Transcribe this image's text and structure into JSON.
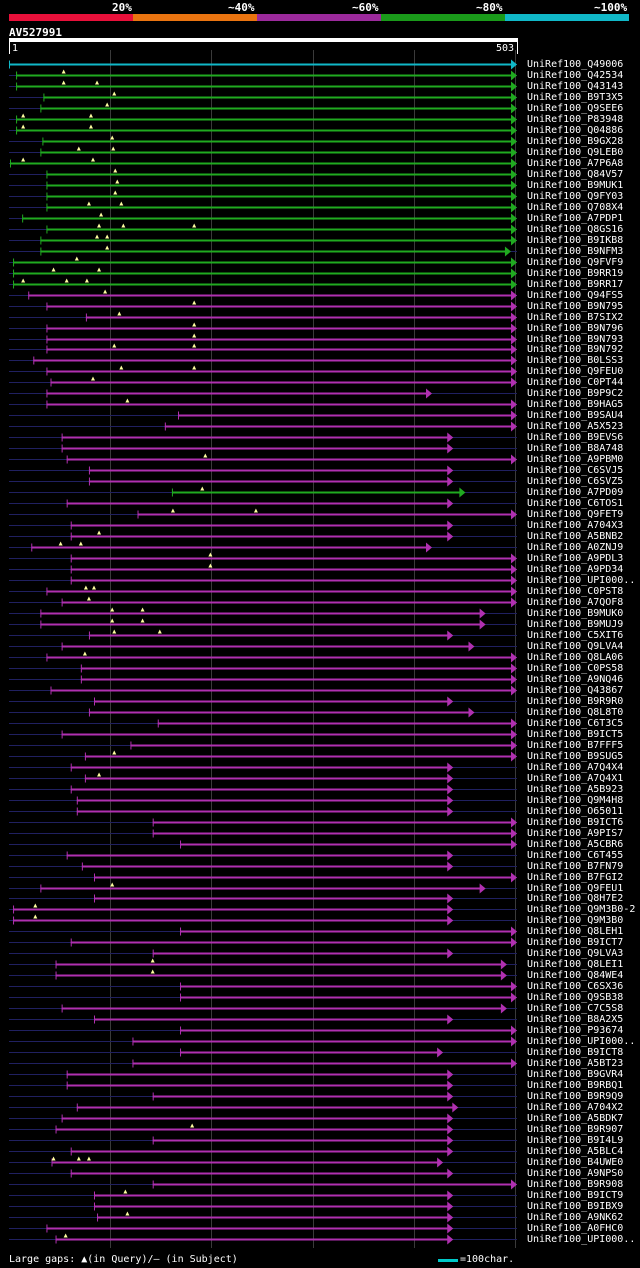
{
  "colors": {
    "bg": "#000000",
    "seg20": "#e8103a",
    "seg40": "#ea7410",
    "seg60": "#9c2a9c",
    "seg80": "#1a9a1a",
    "seg100": "#10b8c8",
    "green_line": "#20aa20",
    "magenta_line": "#b030b0",
    "cyan_line": "#10b8c8",
    "dark_line": "#202060",
    "grid": "#3a3a3a",
    "gap_marker": "#ffffa0"
  },
  "legend": {
    "labels": [
      "20%",
      "~40%",
      "~60%",
      "~80%",
      "~100%"
    ]
  },
  "query": {
    "title": "AV527991",
    "start": "1",
    "end": "503",
    "length": 503
  },
  "hits": [
    {
      "id": "UniRef100_Q49006",
      "color": "cyan",
      "start": 1,
      "end": 503,
      "arrow": true,
      "gaps": []
    },
    {
      "id": "UniRef100_Q42534",
      "color": "green",
      "start": 8,
      "end": 503,
      "arrow": true,
      "gaps": [
        55
      ]
    },
    {
      "id": "UniRef100_Q43143",
      "color": "green",
      "start": 8,
      "end": 503,
      "arrow": true,
      "gaps": [
        55,
        88
      ]
    },
    {
      "id": "UniRef100_B9T3X5",
      "color": "green",
      "start": 35,
      "end": 503,
      "arrow": true,
      "gaps": [
        105
      ]
    },
    {
      "id": "UniRef100_Q9SEE6",
      "color": "green",
      "start": 32,
      "end": 503,
      "arrow": true,
      "gaps": [
        98
      ]
    },
    {
      "id": "UniRef100_P83948",
      "color": "green",
      "start": 8,
      "end": 503,
      "arrow": true,
      "gaps": [
        15,
        82
      ]
    },
    {
      "id": "UniRef100_Q04886",
      "color": "green",
      "start": 8,
      "end": 503,
      "arrow": true,
      "gaps": [
        15,
        82
      ]
    },
    {
      "id": "UniRef100_B9GX28",
      "color": "green",
      "start": 34,
      "end": 503,
      "arrow": true,
      "gaps": [
        103
      ]
    },
    {
      "id": "UniRef100_Q9LEB0",
      "color": "green",
      "start": 32,
      "end": 503,
      "arrow": true,
      "gaps": [
        70,
        104
      ]
    },
    {
      "id": "UniRef100_A7P6A8",
      "color": "green",
      "start": 2,
      "end": 503,
      "arrow": true,
      "gaps": [
        15,
        84
      ]
    },
    {
      "id": "UniRef100_Q84V57",
      "color": "green",
      "start": 38,
      "end": 503,
      "arrow": true,
      "gaps": [
        106
      ]
    },
    {
      "id": "UniRef100_B9MUK1",
      "color": "green",
      "start": 38,
      "end": 503,
      "arrow": true,
      "gaps": [
        108
      ]
    },
    {
      "id": "UniRef100_Q9FY03",
      "color": "green",
      "start": 38,
      "end": 503,
      "arrow": true,
      "gaps": [
        106
      ]
    },
    {
      "id": "UniRef100_Q708X4",
      "color": "green",
      "start": 38,
      "end": 503,
      "arrow": true,
      "gaps": [
        80,
        112
      ]
    },
    {
      "id": "UniRef100_A7PDP1",
      "color": "green",
      "start": 14,
      "end": 503,
      "arrow": true,
      "gaps": [
        92
      ]
    },
    {
      "id": "UniRef100_Q8GS16",
      "color": "green",
      "start": 38,
      "end": 503,
      "arrow": true,
      "gaps": [
        90,
        114,
        184
      ]
    },
    {
      "id": "UniRef100_B9IKB8",
      "color": "green",
      "start": 32,
      "end": 503,
      "arrow": true,
      "gaps": [
        88,
        98
      ]
    },
    {
      "id": "UniRef100_B9NFM3",
      "color": "green",
      "start": 32,
      "end": 497,
      "arrow": true,
      "gaps": [
        98
      ]
    },
    {
      "id": "UniRef100_Q9FVF9",
      "color": "green",
      "start": 5,
      "end": 503,
      "arrow": true,
      "gaps": [
        68
      ]
    },
    {
      "id": "UniRef100_B9RR19",
      "color": "green",
      "start": 5,
      "end": 503,
      "arrow": true,
      "gaps": [
        45,
        90
      ]
    },
    {
      "id": "UniRef100_B9RR17",
      "color": "green",
      "start": 5,
      "end": 503,
      "arrow": true,
      "gaps": [
        15,
        58,
        78
      ]
    },
    {
      "id": "UniRef100_Q94FS5",
      "color": "magenta",
      "start": 20,
      "end": 503,
      "arrow": true,
      "gaps": [
        96
      ]
    },
    {
      "id": "UniRef100_B9N795",
      "color": "magenta",
      "start": 38,
      "end": 503,
      "arrow": true,
      "gaps": [
        184
      ]
    },
    {
      "id": "UniRef100_B7SIX2",
      "color": "magenta",
      "start": 77,
      "end": 503,
      "arrow": true,
      "gaps": [
        110
      ]
    },
    {
      "id": "UniRef100_B9N796",
      "color": "magenta",
      "start": 38,
      "end": 503,
      "arrow": true,
      "gaps": [
        184
      ]
    },
    {
      "id": "UniRef100_B9N793",
      "color": "magenta",
      "start": 38,
      "end": 503,
      "arrow": true,
      "gaps": [
        184
      ]
    },
    {
      "id": "UniRef100_B9N792",
      "color": "magenta",
      "start": 38,
      "end": 503,
      "arrow": true,
      "gaps": [
        105,
        184
      ]
    },
    {
      "id": "UniRef100_B0LSS3",
      "color": "magenta",
      "start": 25,
      "end": 503,
      "arrow": true,
      "gaps": []
    },
    {
      "id": "UniRef100_Q9FEU0",
      "color": "magenta",
      "start": 38,
      "end": 503,
      "arrow": true,
      "gaps": [
        112,
        184
      ]
    },
    {
      "id": "UniRef100_C0PT44",
      "color": "magenta",
      "start": 42,
      "end": 503,
      "arrow": true,
      "gaps": [
        84
      ]
    },
    {
      "id": "UniRef100_B9P9C2",
      "color": "magenta",
      "start": 38,
      "end": 419,
      "arrow": true,
      "gaps": []
    },
    {
      "id": "UniRef100_B9HAG5",
      "color": "magenta",
      "start": 38,
      "end": 503,
      "arrow": true,
      "gaps": [
        118
      ]
    },
    {
      "id": "UniRef100_B9SAU4",
      "color": "magenta",
      "start": 168,
      "end": 503,
      "arrow": true,
      "gaps": []
    },
    {
      "id": "UniRef100_A5X523",
      "color": "magenta",
      "start": 155,
      "end": 503,
      "arrow": true,
      "gaps": []
    },
    {
      "id": "UniRef100_B9EVS6",
      "color": "magenta",
      "start": 53,
      "end": 440,
      "arrow": true,
      "gaps": []
    },
    {
      "id": "UniRef100_B8A748",
      "color": "magenta",
      "start": 53,
      "end": 440,
      "arrow": true,
      "gaps": []
    },
    {
      "id": "UniRef100_A9PBM0",
      "color": "magenta",
      "start": 58,
      "end": 503,
      "arrow": true,
      "gaps": [
        195
      ]
    },
    {
      "id": "UniRef100_C6SVJ5",
      "color": "magenta",
      "start": 80,
      "end": 440,
      "arrow": true,
      "gaps": []
    },
    {
      "id": "UniRef100_C6SVZ5",
      "color": "magenta",
      "start": 80,
      "end": 440,
      "arrow": true,
      "gaps": []
    },
    {
      "id": "UniRef100_A7PD09",
      "color": "green",
      "start": 162,
      "end": 452,
      "arrow": true,
      "gaps": [
        192
      ]
    },
    {
      "id": "UniRef100_C6TOS1",
      "color": "magenta",
      "start": 58,
      "end": 440,
      "arrow": true,
      "gaps": []
    },
    {
      "id": "UniRef100_Q9FET9",
      "color": "magenta",
      "start": 128,
      "end": 503,
      "arrow": true,
      "gaps": [
        163,
        245
      ]
    },
    {
      "id": "UniRef100_A704X3",
      "color": "magenta",
      "start": 62,
      "end": 440,
      "arrow": true,
      "gaps": []
    },
    {
      "id": "UniRef100_A5BNB2",
      "color": "magenta",
      "start": 62,
      "end": 440,
      "arrow": true,
      "gaps": [
        90
      ]
    },
    {
      "id": "UniRef100_A0ZNJ9",
      "color": "magenta",
      "start": 23,
      "end": 419,
      "arrow": true,
      "gaps": [
        52,
        72
      ]
    },
    {
      "id": "UniRef100_A9PDL3",
      "color": "magenta",
      "start": 62,
      "end": 503,
      "arrow": true,
      "gaps": [
        200
      ]
    },
    {
      "id": "UniRef100_A9PD34",
      "color": "magenta",
      "start": 62,
      "end": 503,
      "arrow": true,
      "gaps": [
        200
      ]
    },
    {
      "id": "UniRef100_UPI000..",
      "color": "magenta",
      "start": 62,
      "end": 503,
      "arrow": true,
      "gaps": []
    },
    {
      "id": "UniRef100_C0PST8",
      "color": "magenta",
      "start": 38,
      "end": 503,
      "arrow": true,
      "gaps": [
        77,
        85
      ]
    },
    {
      "id": "UniRef100_A7QOF8",
      "color": "magenta",
      "start": 53,
      "end": 503,
      "arrow": true,
      "gaps": [
        80
      ]
    },
    {
      "id": "UniRef100_B9MUK0",
      "color": "magenta",
      "start": 32,
      "end": 472,
      "arrow": true,
      "gaps": [
        103,
        133
      ]
    },
    {
      "id": "UniRef100_B9MUJ9",
      "color": "magenta",
      "start": 32,
      "end": 472,
      "arrow": true,
      "gaps": [
        103,
        133
      ]
    },
    {
      "id": "UniRef100_C5XIT6",
      "color": "magenta",
      "start": 80,
      "end": 440,
      "arrow": true,
      "gaps": [
        105,
        150
      ]
    },
    {
      "id": "UniRef100_Q9LVA4",
      "color": "magenta",
      "start": 53,
      "end": 461,
      "arrow": true,
      "gaps": []
    },
    {
      "id": "UniRef100_Q8LA06",
      "color": "magenta",
      "start": 38,
      "end": 503,
      "arrow": true,
      "gaps": [
        76
      ]
    },
    {
      "id": "UniRef100_C0PS58",
      "color": "magenta",
      "start": 72,
      "end": 503,
      "arrow": true,
      "gaps": []
    },
    {
      "id": "UniRef100_A9NQ46",
      "color": "magenta",
      "start": 72,
      "end": 503,
      "arrow": true,
      "gaps": []
    },
    {
      "id": "UniRef100_Q43867",
      "color": "magenta",
      "start": 42,
      "end": 503,
      "arrow": true,
      "gaps": []
    },
    {
      "id": "UniRef100_B9R9R0",
      "color": "magenta",
      "start": 85,
      "end": 440,
      "arrow": true,
      "gaps": []
    },
    {
      "id": "UniRef100_Q8L8T0",
      "color": "magenta",
      "start": 80,
      "end": 461,
      "arrow": true,
      "gaps": []
    },
    {
      "id": "UniRef100_C6T3C5",
      "color": "magenta",
      "start": 148,
      "end": 503,
      "arrow": true,
      "gaps": []
    },
    {
      "id": "UniRef100_B9ICT5",
      "color": "magenta",
      "start": 53,
      "end": 503,
      "arrow": true,
      "gaps": []
    },
    {
      "id": "UniRef100_B7FFF5",
      "color": "magenta",
      "start": 121,
      "end": 503,
      "arrow": true,
      "gaps": []
    },
    {
      "id": "UniRef100_B9SUG5",
      "color": "magenta",
      "start": 76,
      "end": 503,
      "arrow": true,
      "gaps": [
        105
      ]
    },
    {
      "id": "UniRef100_A7Q4X4",
      "color": "magenta",
      "start": 62,
      "end": 440,
      "arrow": true,
      "gaps": []
    },
    {
      "id": "UniRef100_A7Q4X1",
      "color": "magenta",
      "start": 76,
      "end": 440,
      "arrow": true,
      "gaps": [
        90
      ]
    },
    {
      "id": "UniRef100_A5B923",
      "color": "magenta",
      "start": 62,
      "end": 440,
      "arrow": true,
      "gaps": []
    },
    {
      "id": "UniRef100_Q9M4H8",
      "color": "magenta",
      "start": 68,
      "end": 440,
      "arrow": true,
      "gaps": []
    },
    {
      "id": "UniRef100_O65011",
      "color": "magenta",
      "start": 68,
      "end": 440,
      "arrow": true,
      "gaps": []
    },
    {
      "id": "UniRef100_B9ICT6",
      "color": "magenta",
      "start": 143,
      "end": 503,
      "arrow": true,
      "gaps": []
    },
    {
      "id": "UniRef100_A9PIS7",
      "color": "magenta",
      "start": 143,
      "end": 503,
      "arrow": true,
      "gaps": []
    },
    {
      "id": "UniRef100_A5CBR6",
      "color": "magenta",
      "start": 170,
      "end": 503,
      "arrow": true,
      "gaps": []
    },
    {
      "id": "UniRef100_C6T455",
      "color": "magenta",
      "start": 58,
      "end": 440,
      "arrow": true,
      "gaps": []
    },
    {
      "id": "UniRef100_B7FN79",
      "color": "magenta",
      "start": 73,
      "end": 440,
      "arrow": true,
      "gaps": []
    },
    {
      "id": "UniRef100_B7FGI2",
      "color": "magenta",
      "start": 85,
      "end": 503,
      "arrow": true,
      "gaps": []
    },
    {
      "id": "UniRef100_Q9FEU1",
      "color": "magenta",
      "start": 32,
      "end": 472,
      "arrow": true,
      "gaps": [
        103
      ]
    },
    {
      "id": "UniRef100_Q8H7E2",
      "color": "magenta",
      "start": 85,
      "end": 440,
      "arrow": true,
      "gaps": []
    },
    {
      "id": "UniRef100_Q9M3B0-2",
      "color": "magenta",
      "start": 5,
      "end": 440,
      "arrow": true,
      "gaps": [
        27
      ]
    },
    {
      "id": "UniRef100_Q9M3B0",
      "color": "magenta",
      "start": 5,
      "end": 440,
      "arrow": true,
      "gaps": [
        27
      ]
    },
    {
      "id": "UniRef100_Q8LEH1",
      "color": "magenta",
      "start": 170,
      "end": 503,
      "arrow": true,
      "gaps": []
    },
    {
      "id": "UniRef100_B9ICT7",
      "color": "magenta",
      "start": 62,
      "end": 503,
      "arrow": true,
      "gaps": []
    },
    {
      "id": "UniRef100_Q9LVA3",
      "color": "magenta",
      "start": 143,
      "end": 440,
      "arrow": true,
      "gaps": []
    },
    {
      "id": "UniRef100_Q8LEI1",
      "color": "magenta",
      "start": 47,
      "end": 493,
      "arrow": true,
      "gaps": [
        143
      ]
    },
    {
      "id": "UniRef100_Q84WE4",
      "color": "magenta",
      "start": 47,
      "end": 493,
      "arrow": true,
      "gaps": [
        143
      ]
    },
    {
      "id": "UniRef100_C6SX36",
      "color": "magenta",
      "start": 170,
      "end": 503,
      "arrow": true,
      "gaps": []
    },
    {
      "id": "UniRef100_Q9SB38",
      "color": "magenta",
      "start": 170,
      "end": 503,
      "arrow": true,
      "gaps": []
    },
    {
      "id": "UniRef100_C7C5S8",
      "color": "magenta",
      "start": 53,
      "end": 493,
      "arrow": true,
      "gaps": []
    },
    {
      "id": "UniRef100_B8A2X5",
      "color": "magenta",
      "start": 85,
      "end": 440,
      "arrow": true,
      "gaps": []
    },
    {
      "id": "UniRef100_P93674",
      "color": "magenta",
      "start": 170,
      "end": 503,
      "arrow": true,
      "gaps": []
    },
    {
      "id": "UniRef100_UPI000..",
      "color": "magenta",
      "start": 123,
      "end": 503,
      "arrow": true,
      "gaps": []
    },
    {
      "id": "UniRef100_B9ICT8",
      "color": "magenta",
      "start": 170,
      "end": 430,
      "arrow": true,
      "gaps": []
    },
    {
      "id": "UniRef100_A5BT23",
      "color": "magenta",
      "start": 123,
      "end": 503,
      "arrow": true,
      "gaps": []
    },
    {
      "id": "UniRef100_B9GVR4",
      "color": "magenta",
      "start": 58,
      "end": 440,
      "arrow": true,
      "gaps": []
    },
    {
      "id": "UniRef100_B9RBQ1",
      "color": "magenta",
      "start": 58,
      "end": 440,
      "arrow": true,
      "gaps": []
    },
    {
      "id": "UniRef100_B9R9Q9",
      "color": "magenta",
      "start": 143,
      "end": 440,
      "arrow": true,
      "gaps": []
    },
    {
      "id": "UniRef100_A704X2",
      "color": "magenta",
      "start": 68,
      "end": 445,
      "arrow": true,
      "gaps": []
    },
    {
      "id": "UniRef100_A5BDK7",
      "color": "magenta",
      "start": 53,
      "end": 440,
      "arrow": true,
      "gaps": []
    },
    {
      "id": "UniRef100_B9R907",
      "color": "magenta",
      "start": 47,
      "end": 440,
      "arrow": true,
      "gaps": [
        182
      ]
    },
    {
      "id": "UniRef100_B9I4L9",
      "color": "magenta",
      "start": 143,
      "end": 440,
      "arrow": true,
      "gaps": []
    },
    {
      "id": "UniRef100_A5BLC4",
      "color": "magenta",
      "start": 62,
      "end": 440,
      "arrow": true,
      "gaps": []
    },
    {
      "id": "UniRef100_B4UWE0",
      "color": "magenta",
      "start": 43,
      "end": 430,
      "arrow": true,
      "gaps": [
        45,
        70,
        80
      ]
    },
    {
      "id": "UniRef100_A9NPS0",
      "color": "magenta",
      "start": 62,
      "end": 440,
      "arrow": true,
      "gaps": []
    },
    {
      "id": "UniRef100_B9R908",
      "color": "magenta",
      "start": 143,
      "end": 503,
      "arrow": true,
      "gaps": []
    },
    {
      "id": "UniRef100_B9ICT9",
      "color": "magenta",
      "start": 85,
      "end": 440,
      "arrow": true,
      "gaps": [
        116
      ]
    },
    {
      "id": "UniRef100_B9IBX9",
      "color": "magenta",
      "start": 85,
      "end": 440,
      "arrow": true,
      "gaps": []
    },
    {
      "id": "UniRef100_A9NK62",
      "color": "magenta",
      "start": 88,
      "end": 440,
      "arrow": true,
      "gaps": [
        118
      ]
    },
    {
      "id": "UniRef100_A0FHC0",
      "color": "magenta",
      "start": 38,
      "end": 440,
      "arrow": true,
      "gaps": []
    },
    {
      "id": "UniRef100_UPI000..",
      "color": "magenta",
      "start": 47,
      "end": 440,
      "arrow": true,
      "gaps": [
        57
      ]
    }
  ],
  "footer": {
    "gaps_text": "Large gaps: ▲(in Query)/– (in Subject)",
    "scale_text": "=100char."
  }
}
